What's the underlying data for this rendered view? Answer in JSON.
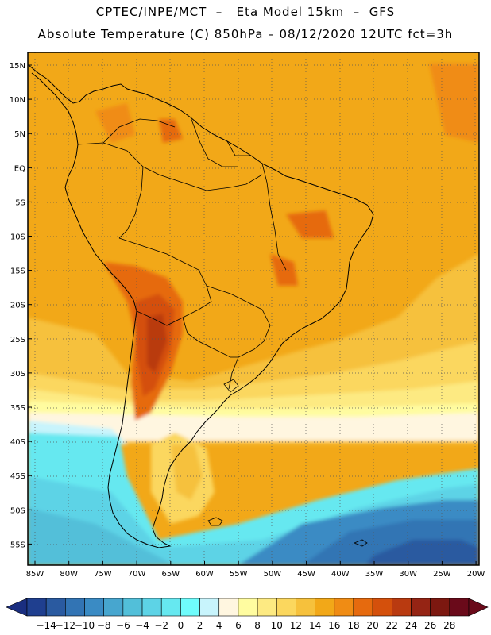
{
  "header": {
    "line1": "CPTEC/INPE/MCT  –   Eta Model 15km  –  GFS",
    "line2": "Absolute Temperature (C) 850hPa – 08/12/2020 12UTC fct=3h"
  },
  "map": {
    "lat_labels": [
      "15N",
      "10N",
      "5N",
      "EQ",
      "5S",
      "10S",
      "15S",
      "20S",
      "25S",
      "30S",
      "35S",
      "40S",
      "45S",
      "50S",
      "55S"
    ],
    "lon_labels": [
      "85W",
      "80W",
      "75W",
      "70W",
      "65W",
      "60W",
      "55W",
      "50W",
      "45W",
      "40W",
      "35W",
      "30W",
      "25W",
      "20W"
    ],
    "variable": "Absolute Temperature",
    "units": "C",
    "level": "850hPa"
  },
  "colorbar": {
    "labels": [
      "-14",
      "-12",
      "-10",
      "-8",
      "-6",
      "-4",
      "-2",
      "0",
      "2",
      "4",
      "6",
      "8",
      "10",
      "12",
      "14",
      "16",
      "18",
      "20",
      "22",
      "24",
      "26",
      "28"
    ],
    "colors": [
      "#1f3f8f",
      "#2a5aa0",
      "#3274b4",
      "#3a8bc4",
      "#47a6cf",
      "#52bfd9",
      "#5dd3e6",
      "#66e8f0",
      "#6ffcfc",
      "#c8f4fc",
      "#fff6e0",
      "#fffca0",
      "#fdea82",
      "#fbd75e",
      "#f6c13c",
      "#f2a818",
      "#f08c14",
      "#e66a0e",
      "#d4500c",
      "#b93a10",
      "#952414",
      "#7c1810",
      "#6a0a1a"
    ],
    "under_color": "#1a2e80",
    "over_color": "#6a0a1a"
  }
}
